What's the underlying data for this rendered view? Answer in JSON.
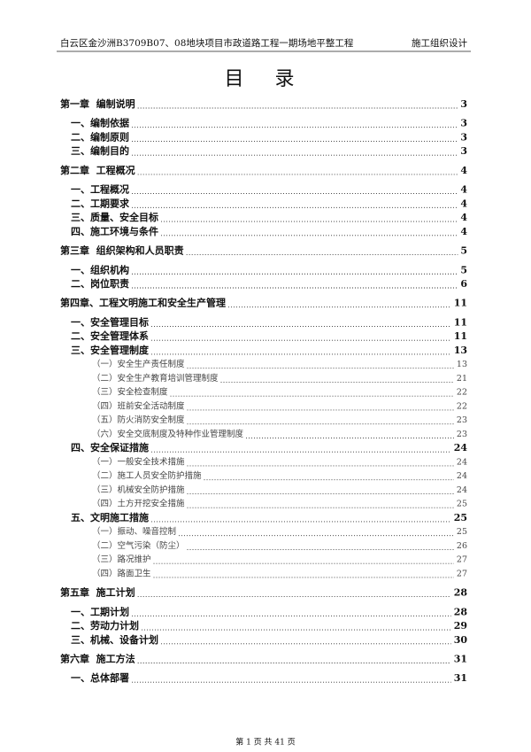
{
  "header": {
    "left": "白云区金沙洲B3709B07、08地块项目市政道路工程一期场地平整工程",
    "right": "施工组织设计"
  },
  "title": "目 录",
  "entries": [
    {
      "level": 0,
      "text": "第一章  编制说明",
      "page": "3"
    },
    {
      "level": 1,
      "text": "一、编制依据",
      "page": "3"
    },
    {
      "level": 1,
      "text": "二、编制原则",
      "page": "3"
    },
    {
      "level": 1,
      "text": "三、编制目的",
      "page": "3"
    },
    {
      "level": 0,
      "text": "第二章  工程概况",
      "page": "4"
    },
    {
      "level": 1,
      "text": "一、工程概况",
      "page": "4"
    },
    {
      "level": 1,
      "text": "二、工期要求",
      "page": "4"
    },
    {
      "level": 1,
      "text": "三、质量、安全目标",
      "page": "4"
    },
    {
      "level": 1,
      "text": "四、施工环境与条件",
      "page": "4"
    },
    {
      "level": 0,
      "text": "第三章  组织架构和人员职责",
      "page": "5"
    },
    {
      "level": 1,
      "text": "一、组织机构",
      "page": "5"
    },
    {
      "level": 1,
      "text": "二、岗位职责",
      "page": "6"
    },
    {
      "level": 0,
      "text": "第四章、工程文明施工和安全生产管理",
      "page": "11"
    },
    {
      "level": 1,
      "text": "一、安全管理目标",
      "page": "11"
    },
    {
      "level": 1,
      "text": "二、安全管理体系",
      "page": "11"
    },
    {
      "level": 1,
      "text": "三、安全管理制度",
      "page": "13"
    },
    {
      "level": 2,
      "text": "（一）安全生产责任制度",
      "page": "13"
    },
    {
      "level": 2,
      "text": "（二）安全生产教育培训管理制度",
      "page": "21"
    },
    {
      "level": 2,
      "text": "（三）安全检查制度",
      "page": "22"
    },
    {
      "level": 2,
      "text": "（四）班前安全活动制度",
      "page": "22"
    },
    {
      "level": 2,
      "text": "（五）防火消防安全制度",
      "page": "23"
    },
    {
      "level": 2,
      "text": "（六）安全交底制度及特种作业管理制度",
      "page": "23"
    },
    {
      "level": 1,
      "text": "四、安全保证措施",
      "page": "24"
    },
    {
      "level": 2,
      "text": "（一）一般安全技术措施",
      "page": "24"
    },
    {
      "level": 2,
      "text": "（二）施工人员安全防护措施",
      "page": "24"
    },
    {
      "level": 2,
      "text": "（三）机械安全防护措施",
      "page": "24"
    },
    {
      "level": 2,
      "text": "（四）土方开挖安全措施",
      "page": "25"
    },
    {
      "level": 1,
      "text": "五、文明施工措施",
      "page": "25"
    },
    {
      "level": 2,
      "text": "（一）振动、噪音控制",
      "page": "25"
    },
    {
      "level": 2,
      "text": "（二）空气污染（防尘）",
      "page": "26"
    },
    {
      "level": 2,
      "text": "（三）路况维护",
      "page": "27"
    },
    {
      "level": 2,
      "text": "（四）路面卫生",
      "page": "27"
    },
    {
      "level": 0,
      "text": "第五章  施工计划",
      "page": "28"
    },
    {
      "level": 1,
      "text": "一、工期计划",
      "page": "28"
    },
    {
      "level": 1,
      "text": "二、劳动力计划",
      "page": "29"
    },
    {
      "level": 1,
      "text": "三、机械、设备计划",
      "page": "30"
    },
    {
      "level": 0,
      "text": "第六章  施工方法",
      "page": "31"
    },
    {
      "level": 1,
      "text": "一、总体部署",
      "page": "31"
    }
  ],
  "footer": "第 1 页 共 41 页"
}
